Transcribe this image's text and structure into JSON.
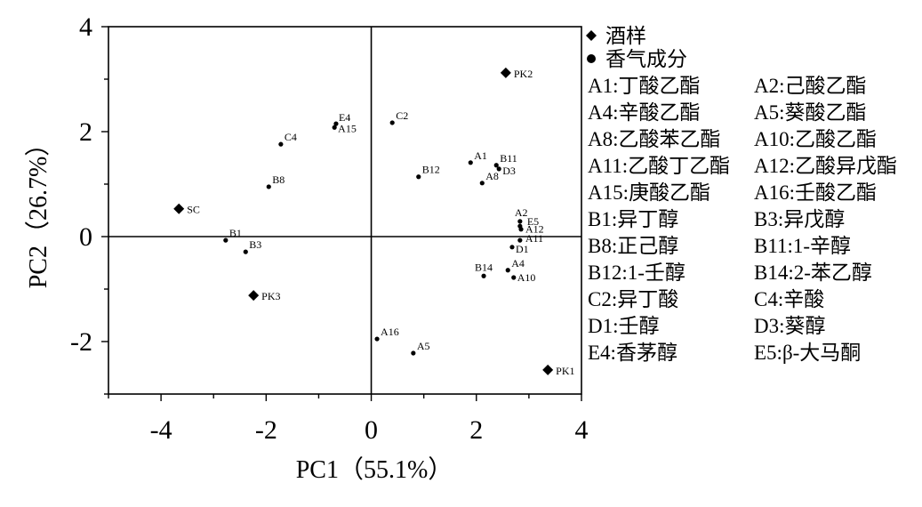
{
  "chart_data": {
    "type": "scatter",
    "xlabel": "PC1（55.1%）",
    "ylabel": "PC2（26.7%）",
    "xlim": [
      -5,
      4
    ],
    "ylim": [
      -3,
      4
    ],
    "xticks": [
      -4,
      -2,
      0,
      2,
      4
    ],
    "yticks": [
      -2,
      0,
      2,
      4
    ],
    "reference_lines": {
      "x": 0,
      "y": 0
    },
    "grid": false,
    "legend": "right",
    "colors": {
      "marker": "#000000",
      "axis": "#000000",
      "background": "#ffffff"
    },
    "series": [
      {
        "name": "酒样",
        "marker": "diamond",
        "points": [
          {
            "label": "SC",
            "x": -3.66,
            "y": 0.53
          },
          {
            "label": "PK2",
            "x": 2.56,
            "y": 3.12
          },
          {
            "label": "PK3",
            "x": -2.24,
            "y": -1.12
          },
          {
            "label": "PK1",
            "x": 3.36,
            "y": -2.54
          }
        ]
      },
      {
        "name": "香气成分",
        "marker": "circle",
        "points": [
          {
            "label": "E4",
            "x": -0.67,
            "y": 2.15
          },
          {
            "label": "A15",
            "x": -0.7,
            "y": 2.08
          },
          {
            "label": "C2",
            "x": 0.4,
            "y": 2.17
          },
          {
            "label": "C4",
            "x": -1.72,
            "y": 1.76
          },
          {
            "label": "B8",
            "x": -1.95,
            "y": 0.95
          },
          {
            "label": "B1",
            "x": -2.77,
            "y": -0.07
          },
          {
            "label": "B3",
            "x": -2.39,
            "y": -0.29
          },
          {
            "label": "B12",
            "x": 0.9,
            "y": 1.14
          },
          {
            "label": "A1",
            "x": 1.89,
            "y": 1.41
          },
          {
            "label": "B11",
            "x": 2.38,
            "y": 1.36
          },
          {
            "label": "D3",
            "x": 2.43,
            "y": 1.29
          },
          {
            "label": "A8",
            "x": 2.11,
            "y": 1.02
          },
          {
            "label": "A2",
            "x": 2.83,
            "y": 0.29
          },
          {
            "label": "E5",
            "x": 2.83,
            "y": 0.2
          },
          {
            "label": "A12",
            "x": 2.85,
            "y": 0.14
          },
          {
            "label": "A11",
            "x": 2.83,
            "y": -0.07
          },
          {
            "label": "D1",
            "x": 2.68,
            "y": -0.2
          },
          {
            "label": "B14",
            "x": 2.14,
            "y": -0.75
          },
          {
            "label": "A4",
            "x": 2.6,
            "y": -0.64
          },
          {
            "label": "A10",
            "x": 2.71,
            "y": -0.78
          },
          {
            "label": "A16",
            "x": 0.11,
            "y": -1.95
          },
          {
            "label": "A5",
            "x": 0.8,
            "y": -2.22
          }
        ]
      }
    ],
    "code_key": [
      [
        "A1:丁酸乙酯",
        "A2:己酸乙酯"
      ],
      [
        "A4:辛酸乙酯",
        "A5:葵酸乙酯"
      ],
      [
        "A8:乙酸苯乙酯",
        "A10:乙酸乙酯"
      ],
      [
        "A11:乙酸丁乙酯",
        "A12:乙酸异戊酯"
      ],
      [
        "A15:庚酸乙酯",
        "A16:壬酸乙酯"
      ],
      [
        "B1:异丁醇",
        "B3:异戊醇"
      ],
      [
        "B8:正己醇",
        "B11:1-辛醇"
      ],
      [
        "B12:1-壬醇",
        "B14:2-苯乙醇"
      ],
      [
        "C2:异丁酸",
        "C4:辛酸"
      ],
      [
        "D1:壬醇",
        "D3:葵醇"
      ],
      [
        "E4:香茅醇",
        "E5:β-大马酮"
      ]
    ]
  }
}
